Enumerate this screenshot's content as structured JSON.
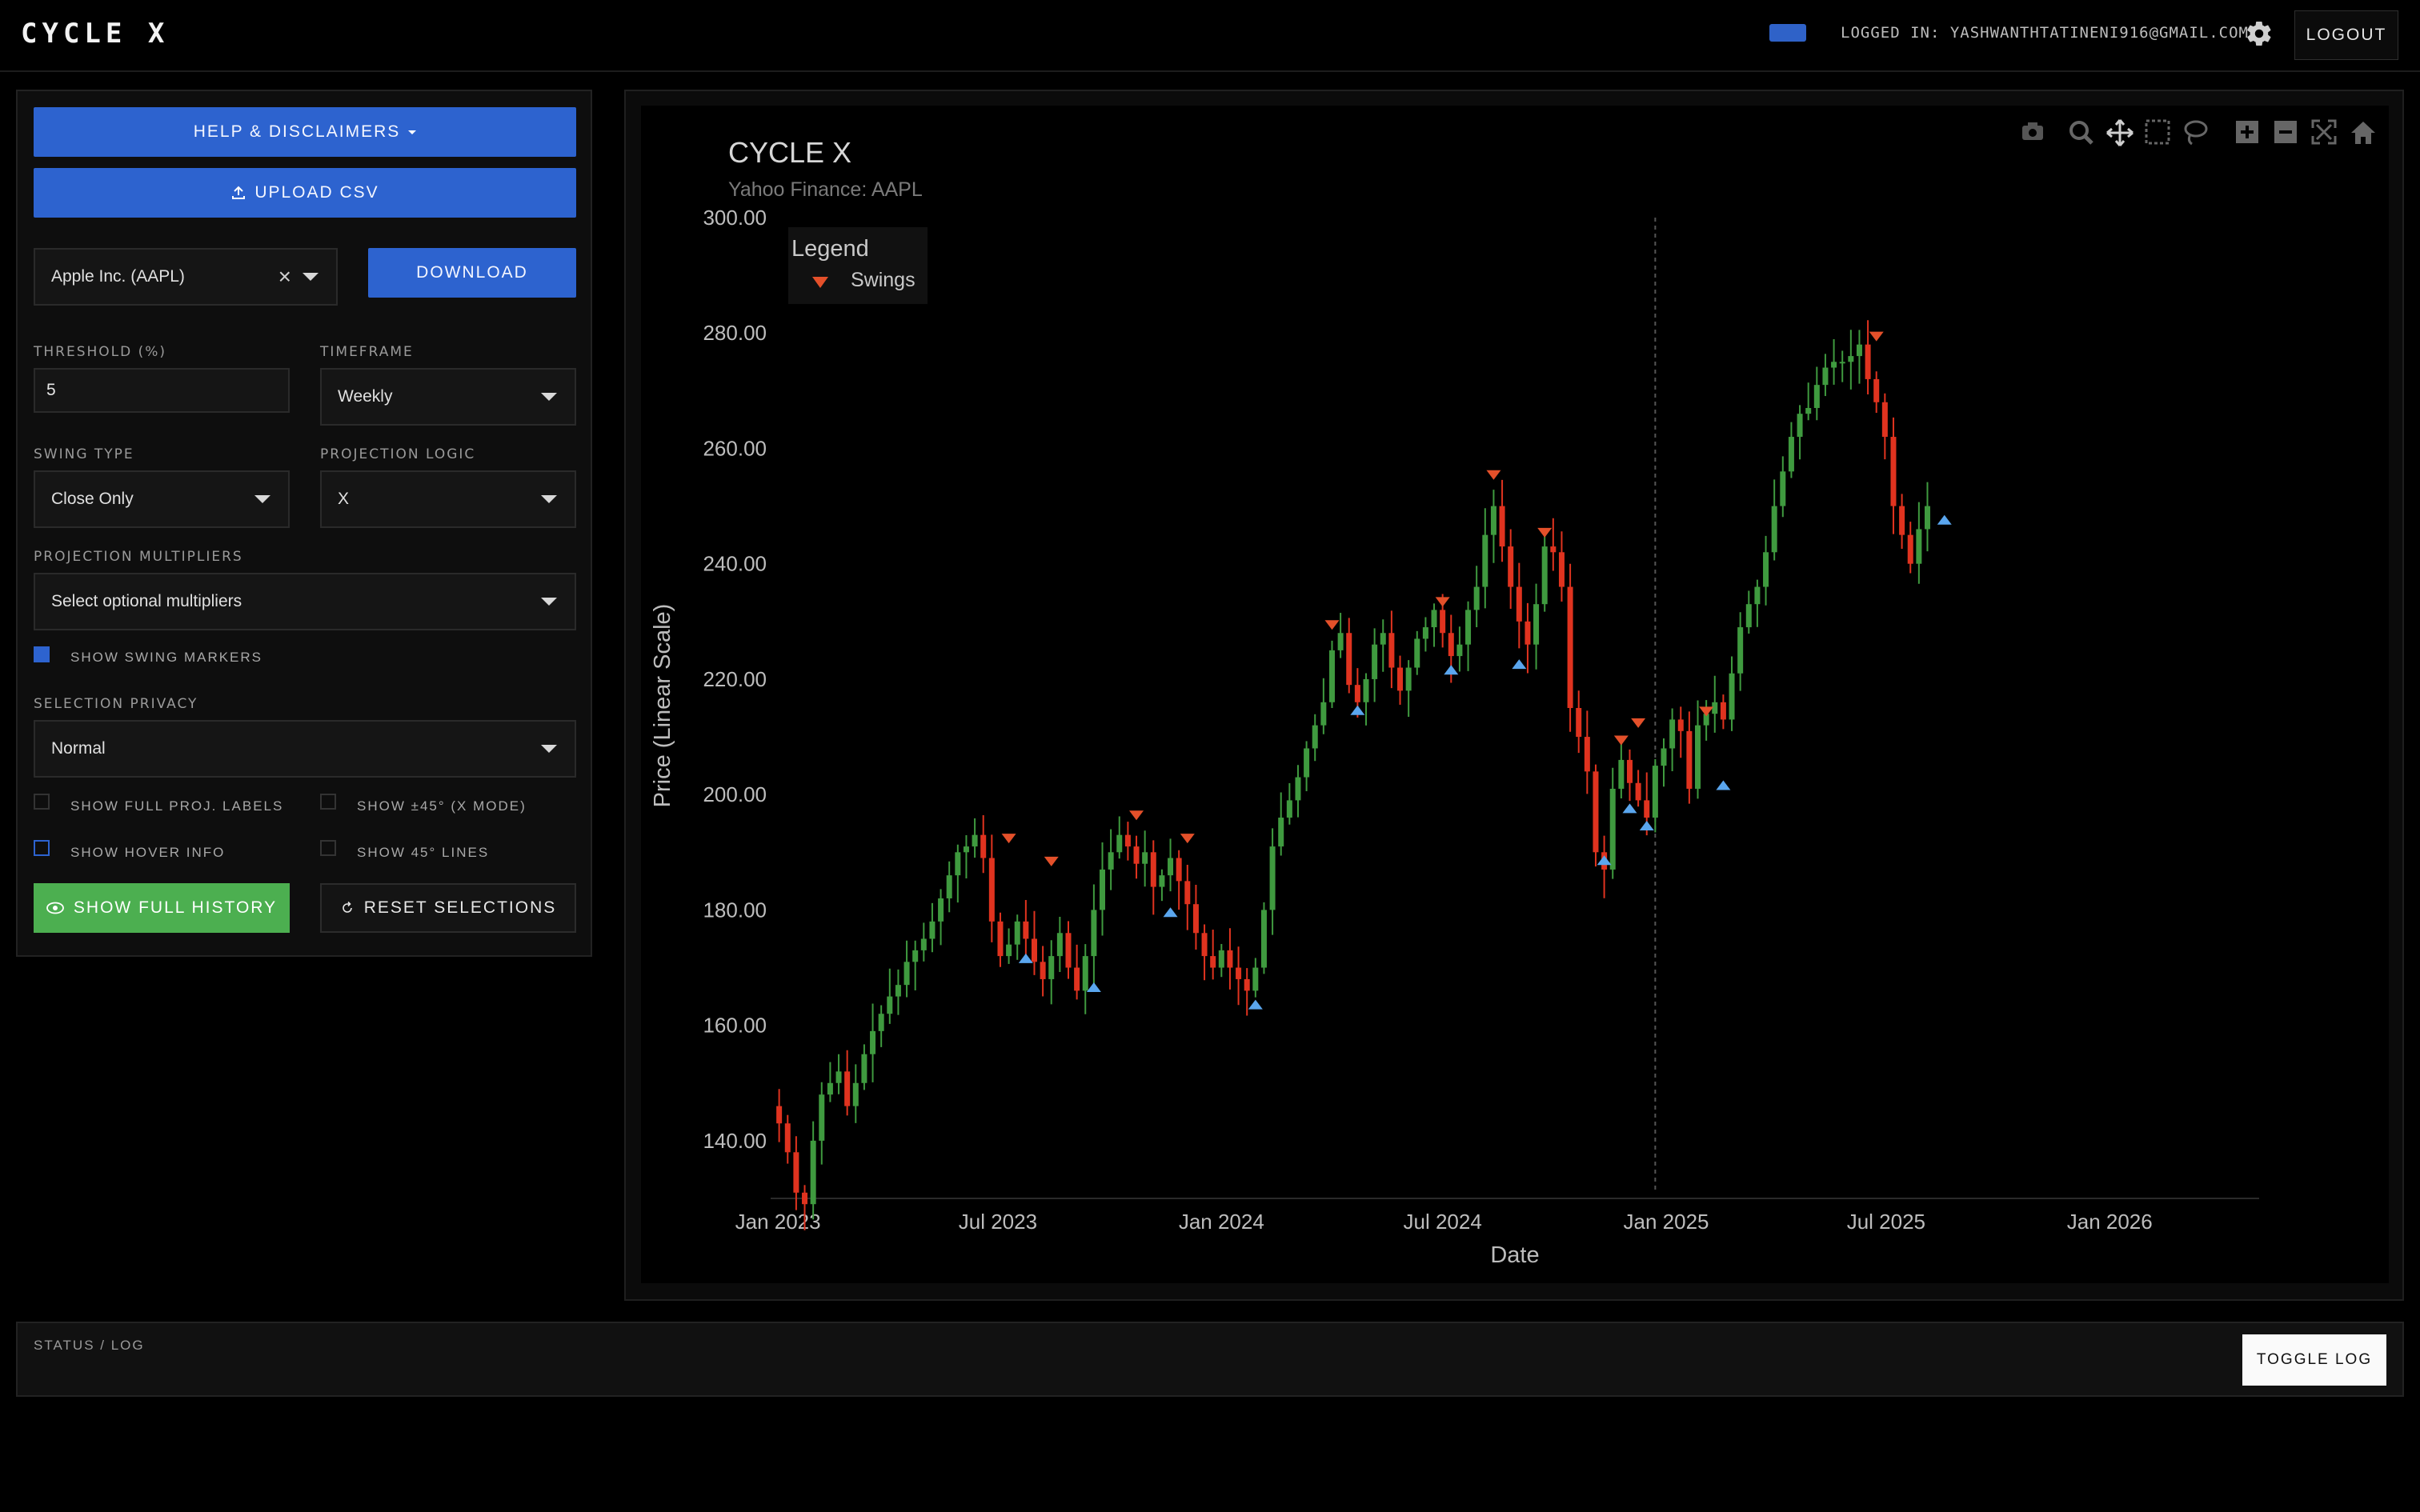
{
  "app": {
    "brand": "CYCLE X",
    "logged_in": "LOGGED IN: YASHWANTHTATINENI916@GMAIL.COM",
    "logout": "LOGOUT",
    "accent": "#2d63cf"
  },
  "sidebar": {
    "help": "HELP & DISCLAIMERS",
    "upload": "UPLOAD CSV",
    "ticker": "Apple Inc. (AAPL)",
    "download": "DOWNLOAD",
    "threshold_label": "THRESHOLD (%)",
    "threshold_value": "5",
    "timeframe_label": "TIMEFRAME",
    "timeframe_value": "Weekly",
    "swing_type_label": "SWING TYPE",
    "swing_type_value": "Close Only",
    "projection_logic_label": "PROJECTION LOGIC",
    "projection_logic_value": "X",
    "multipliers_label": "PROJECTION MULTIPLIERS",
    "multipliers_placeholder": "Select optional multipliers",
    "show_swing_markers": "SHOW SWING MARKERS",
    "privacy_label": "SELECTION PRIVACY",
    "privacy_value": "Normal",
    "show_full_proj_labels": "SHOW FULL PROJ. LABELS",
    "show_45_x": "SHOW ±45° (X MODE)",
    "show_hover_info": "SHOW HOVER INFO",
    "show_45_lines": "SHOW 45° LINES",
    "show_full_history": "SHOW FULL HISTORY",
    "reset_selections": "RESET SELECTIONS",
    "checkbox_states": {
      "swing_markers": true,
      "full_proj_labels": false,
      "x45": false,
      "hover_info": false,
      "lines45": false
    }
  },
  "status": {
    "label": "STATUS / LOG",
    "toggle": "TOGGLE LOG"
  },
  "chart_data": {
    "type": "candlestick",
    "title": "CYCLE X",
    "subtitle": "Yahoo Finance: AAPL",
    "xlabel": "Date",
    "ylabel": "Price (Linear Scale)",
    "legend_title": "Legend",
    "legend_entries": [
      "Swings"
    ],
    "legend_position": "top-left",
    "y_ticks": [
      "140.00",
      "160.00",
      "180.00",
      "200.00",
      "220.00",
      "240.00",
      "260.00",
      "280.00",
      "300.00"
    ],
    "ylim": [
      130,
      300
    ],
    "x_ticks": [
      "Jan 2023",
      "Jul 2023",
      "Jan 2024",
      "Jul 2024",
      "Jan 2025",
      "Jul 2025",
      "Jan 2026"
    ],
    "xlim": [
      "2022-12-26",
      "2026-05-04"
    ],
    "vline_date": "2024-12-23",
    "colors": {
      "up": "#3f9a3f",
      "down": "#e0331f",
      "swing_high": "#e4502a",
      "swing_low": "#5aa6ee"
    },
    "closes": [
      143,
      138,
      131,
      129,
      140,
      148,
      150,
      152,
      146,
      150,
      155,
      159,
      162,
      165,
      167,
      171,
      173,
      175,
      178,
      182,
      186,
      190,
      191,
      193,
      189,
      178,
      172,
      174,
      178,
      175,
      171,
      168,
      172,
      176,
      170,
      166,
      172,
      180,
      187,
      190,
      193,
      191,
      188,
      190,
      184,
      186,
      189,
      185,
      181,
      176,
      172,
      170,
      173,
      170,
      168,
      166,
      170,
      180,
      191,
      196,
      199,
      203,
      208,
      212,
      216,
      225,
      228,
      219,
      216,
      220,
      226,
      228,
      222,
      218,
      222,
      227,
      229,
      232,
      228,
      224,
      226,
      232,
      236,
      245,
      250,
      243,
      236,
      230,
      226,
      233,
      243,
      242,
      236,
      215,
      210,
      204,
      190,
      187,
      201,
      206,
      202,
      199,
      196,
      205,
      208,
      213,
      211,
      201,
      212,
      214,
      216,
      213,
      221,
      229,
      233,
      236,
      242,
      250,
      256,
      262,
      266,
      267,
      271,
      274,
      275,
      275,
      276,
      278,
      272,
      268,
      262,
      250,
      245,
      240,
      246,
      250
    ],
    "swings": [
      {
        "i": 27,
        "type": "high",
        "price": 191
      },
      {
        "i": 29,
        "type": "low",
        "price": 173
      },
      {
        "i": 32,
        "type": "high",
        "price": 187
      },
      {
        "i": 37,
        "type": "low",
        "price": 168
      },
      {
        "i": 42,
        "type": "high",
        "price": 195
      },
      {
        "i": 48,
        "type": "high",
        "price": 191
      },
      {
        "i": 46,
        "type": "low",
        "price": 181
      },
      {
        "i": 56,
        "type": "low",
        "price": 165
      },
      {
        "i": 65,
        "type": "high",
        "price": 228
      },
      {
        "i": 68,
        "type": "low",
        "price": 216
      },
      {
        "i": 78,
        "type": "high",
        "price": 232
      },
      {
        "i": 79,
        "type": "low",
        "price": 223
      },
      {
        "i": 84,
        "type": "high",
        "price": 254
      },
      {
        "i": 87,
        "type": "low",
        "price": 224
      },
      {
        "i": 90,
        "type": "high",
        "price": 244
      },
      {
        "i": 97,
        "type": "low",
        "price": 190
      },
      {
        "i": 99,
        "type": "high",
        "price": 208
      },
      {
        "i": 100,
        "type": "low",
        "price": 199
      },
      {
        "i": 101,
        "type": "high",
        "price": 211
      },
      {
        "i": 102,
        "type": "low",
        "price": 196
      },
      {
        "i": 109,
        "type": "high",
        "price": 213
      },
      {
        "i": 111,
        "type": "low",
        "price": 203
      },
      {
        "i": 129,
        "type": "high",
        "price": 278
      },
      {
        "i": 137,
        "type": "low",
        "price": 249
      }
    ]
  }
}
